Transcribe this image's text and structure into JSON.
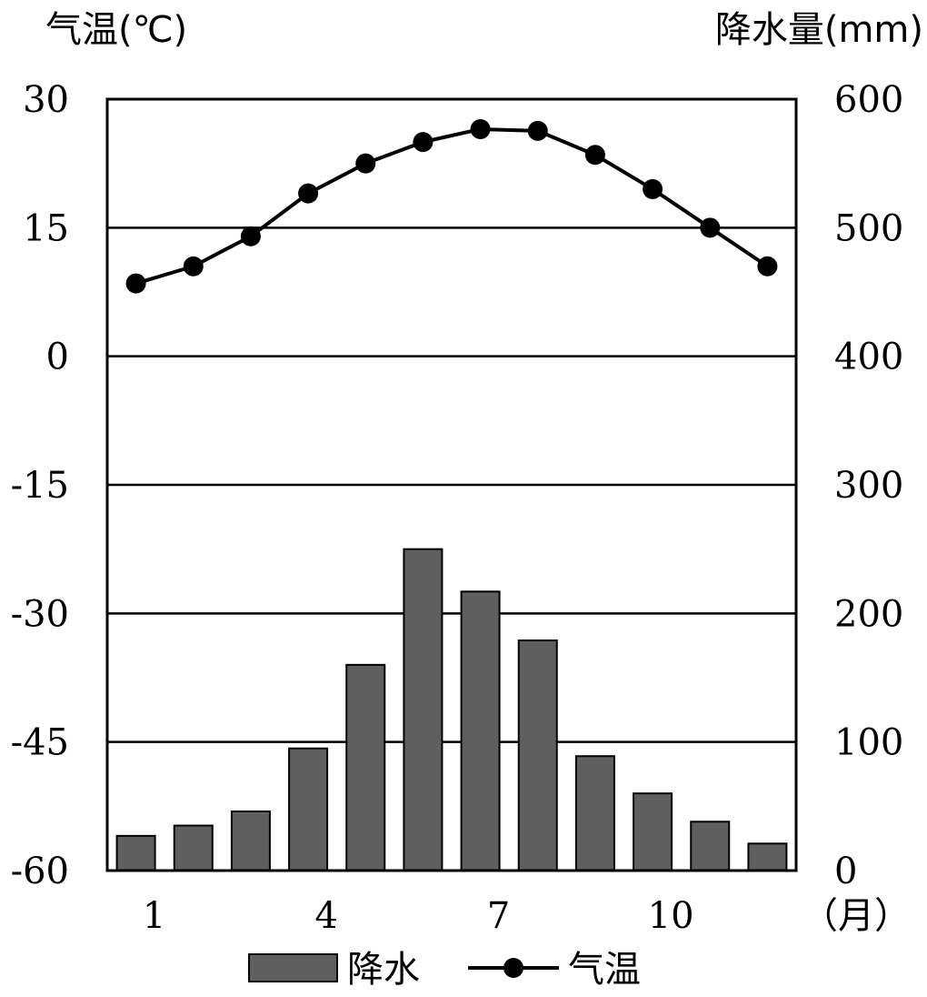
{
  "chart_data": {
    "type": "bar+line",
    "categories": [
      1,
      2,
      3,
      4,
      5,
      6,
      7,
      8,
      9,
      10,
      11,
      12
    ],
    "x_tick_labels": [
      "1",
      "4",
      "7",
      "10"
    ],
    "x_unit_label": "（月）",
    "left_axis": {
      "label": "气温(℃)",
      "ticks": [
        "30",
        "15",
        "0",
        "-15",
        "-30",
        "-45",
        "-60"
      ],
      "range": [
        -60,
        30
      ]
    },
    "right_axis": {
      "label": "降水量(mm)",
      "ticks": [
        "600",
        "500",
        "400",
        "300",
        "200",
        "100",
        "0"
      ],
      "range": [
        0,
        600
      ]
    },
    "series": [
      {
        "name": "降水",
        "type": "bar",
        "axis": "right",
        "color": "#5f5f5f",
        "values": [
          27,
          35,
          46,
          95,
          160,
          250,
          217,
          179,
          89,
          60,
          38,
          21
        ]
      },
      {
        "name": "气温",
        "type": "line",
        "axis": "left",
        "color": "#000000",
        "values": [
          8.5,
          10.5,
          14,
          19,
          22.5,
          25,
          26.5,
          26.3,
          23.5,
          19.5,
          15,
          10.5
        ]
      }
    ],
    "grid": true,
    "legend": "bottom-center"
  }
}
